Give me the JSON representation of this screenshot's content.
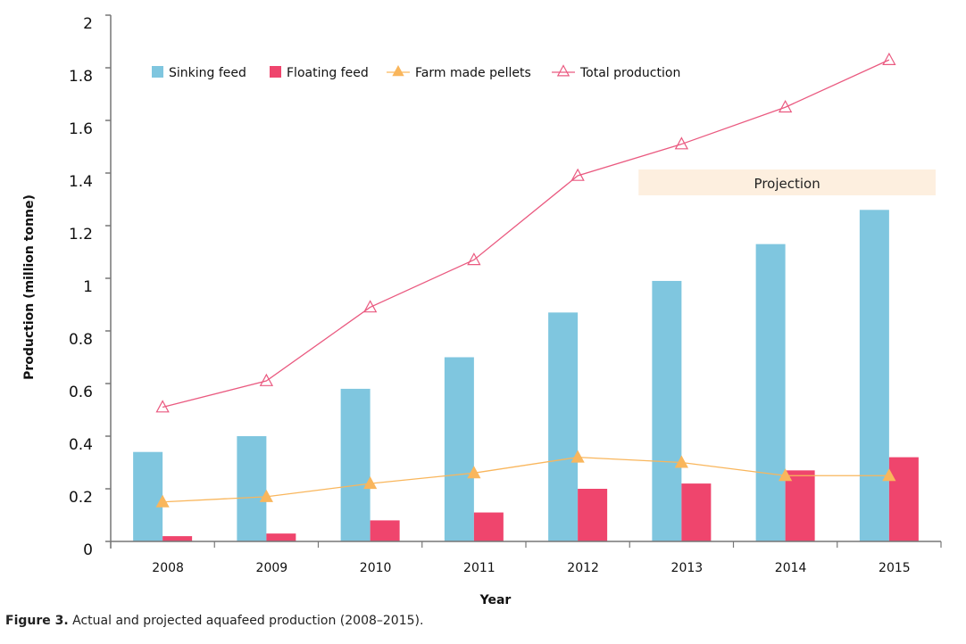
{
  "chart_data": {
    "type": "bar",
    "title": "",
    "xlabel": "Year",
    "ylabel": "Production (million tonne)",
    "ylim": [
      0,
      2
    ],
    "yticks": [
      0,
      0.2,
      0.4,
      0.6,
      0.8,
      1,
      1.2,
      1.4,
      1.6,
      1.8,
      2
    ],
    "ytick_labels": [
      "0",
      "0.2",
      "0.4",
      "0.6",
      "0.8",
      "1",
      "1.2",
      "1.4",
      "1.6",
      "1.8",
      "2"
    ],
    "categories": [
      "2008",
      "2009",
      "2010",
      "2011",
      "2012",
      "2013",
      "2014",
      "2015"
    ],
    "grid": false,
    "legend_position": "top-left",
    "series": [
      {
        "name": "Sinking feed",
        "type": "bar",
        "color": "#7fc6df",
        "values": [
          0.34,
          0.4,
          0.58,
          0.7,
          0.87,
          0.99,
          1.13,
          1.26
        ]
      },
      {
        "name": "Floating feed",
        "type": "bar",
        "color": "#ef456d",
        "values": [
          0.02,
          0.03,
          0.08,
          0.11,
          0.2,
          0.22,
          0.27,
          0.32
        ]
      },
      {
        "name": "Farm made pellets",
        "type": "line",
        "marker": "filled-triangle",
        "color": "#f9b65c",
        "values": [
          0.15,
          0.17,
          0.22,
          0.26,
          0.32,
          0.3,
          0.25,
          0.25
        ]
      },
      {
        "name": "Total production",
        "type": "line",
        "marker": "open-triangle",
        "color": "#ea5a80",
        "values": [
          0.51,
          0.61,
          0.89,
          1.07,
          1.39,
          1.51,
          1.65,
          1.83
        ]
      }
    ],
    "annotations": [
      {
        "text": "Projection",
        "from_category": "2013",
        "to_category": "2015",
        "color": "#fdefdf"
      }
    ]
  },
  "caption": {
    "label": "Figure 3.",
    "text": " Actual and projected aquafeed production (2008–2015)."
  }
}
